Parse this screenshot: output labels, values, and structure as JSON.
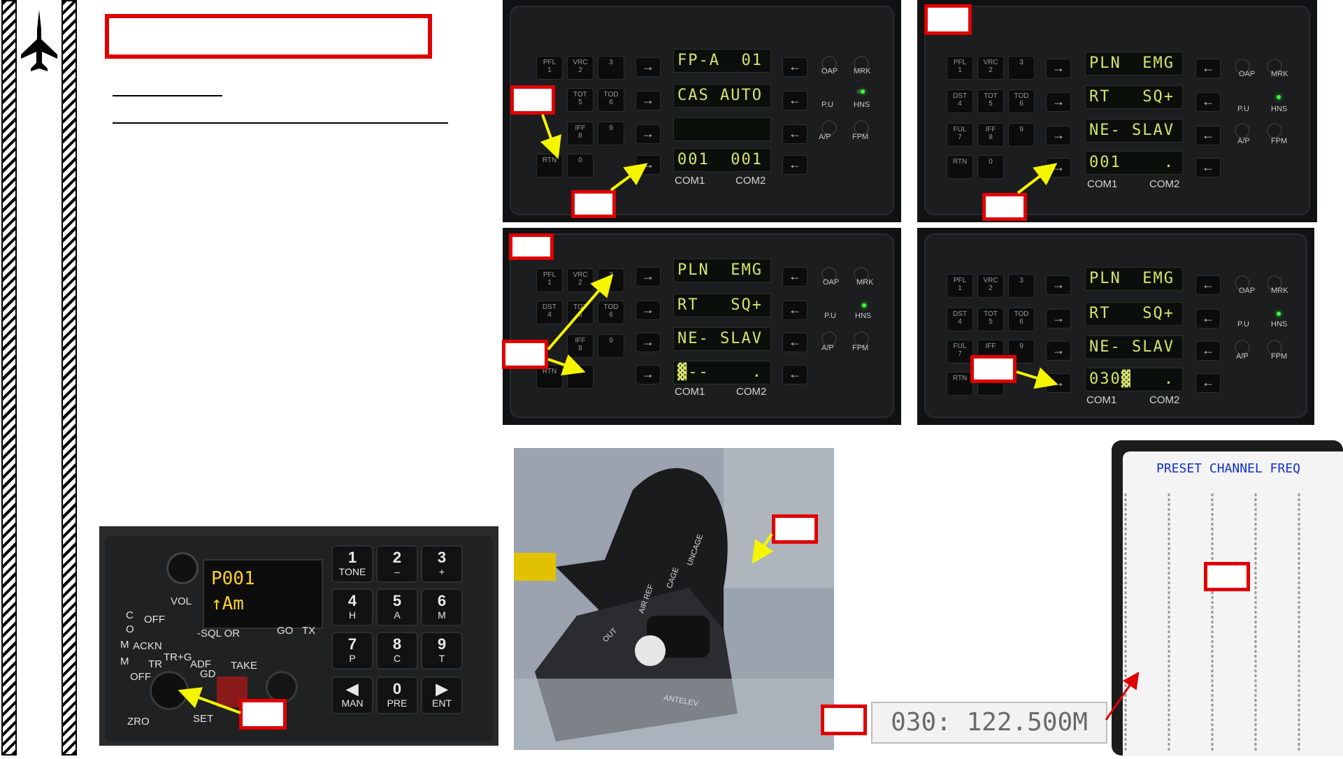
{
  "panels": {
    "p1": {
      "row1_left": [
        "PFL\n1",
        "VRC\n2",
        "3"
      ],
      "row2_left": [
        "TOT\n5",
        "TOD\n6"
      ],
      "row3_left": [
        "IFF\n8",
        "9"
      ],
      "row4_left": [
        "RTN",
        "0"
      ],
      "lcd": [
        "FP-A  01",
        "CAS AUTO",
        "",
        "001  001"
      ],
      "right": [
        "OAP",
        "MRK",
        "P.U",
        "HNS",
        "A/P",
        "FPM"
      ],
      "com1": "COM1",
      "com2": "COM2"
    },
    "p2": {
      "row1_left": [
        "PFL\n1",
        "VRC\n2",
        "3"
      ],
      "row2_left": [
        "DST\n4",
        "TOT\n5",
        "TOD\n6"
      ],
      "row3_left": [
        "FUL\n7",
        "IFF\n8",
        "9"
      ],
      "row4_left": [
        "RTN",
        "0"
      ],
      "lcd": [
        "PLN  EMG",
        "RT   SQ+",
        "NE- SLAV",
        "001    ."
      ],
      "right": [
        "OAP",
        "MRK",
        "P.U",
        "HNS",
        "A/P",
        "FPM"
      ],
      "com1": "COM1",
      "com2": "COM2"
    },
    "p3": {
      "row1_left": [
        "PFL\n1",
        "VRC\n2",
        "3"
      ],
      "row2_left": [
        "DST\n4",
        "TOT\n5",
        "TOD\n6"
      ],
      "row3_left": [
        "IFF\n8",
        "9"
      ],
      "row4_left": [
        "RTN",
        "0"
      ],
      "lcd": [
        "PLN  EMG",
        "RT   SQ+",
        "NE- SLAV",
        "▓--    ."
      ],
      "right": [
        "OAP",
        "MRK",
        "P.U",
        "HNS",
        "A/P",
        "FPM"
      ],
      "com1": "COM1",
      "com2": "COM2"
    },
    "p4": {
      "row1_left": [
        "PFL\n1",
        "VRC\n2",
        "3"
      ],
      "row2_left": [
        "DST\n4",
        "TOT\n5",
        "TOD\n6"
      ],
      "row3_left": [
        "FUL\n7",
        "IFF",
        "9"
      ],
      "row4_left": [
        "RTN",
        "0"
      ],
      "lcd": [
        "PLN  EMG",
        "RT   SQ+",
        "NE- SLAV",
        "030▓   ."
      ],
      "right": [
        "OAP",
        "MRK",
        "P.U",
        "HNS",
        "A/P",
        "FPM"
      ],
      "com1": "COM1",
      "com2": "COM2"
    }
  },
  "radio": {
    "display_line1": "P001",
    "display_line2": "↑Am",
    "vol": "VOL",
    "labels": [
      "C",
      "O",
      "M",
      "M",
      "OFF",
      "-SQL OR",
      "GO",
      "TX",
      "ACKN",
      "TR",
      "TR+G",
      "ADF",
      "GD",
      "TAKE",
      "OFF",
      "ZRO",
      "SET"
    ],
    "keys": [
      {
        "main": "1",
        "sub": "TONE"
      },
      {
        "main": "2",
        "sub": "–"
      },
      {
        "main": "3",
        "sub": "+"
      },
      {
        "main": "4",
        "sub": "H"
      },
      {
        "main": "5",
        "sub": "A"
      },
      {
        "main": "6",
        "sub": "M"
      },
      {
        "main": "7",
        "sub": "P"
      },
      {
        "main": "8",
        "sub": "C"
      },
      {
        "main": "9",
        "sub": "T"
      },
      {
        "main": "◀",
        "sub": "MAN"
      },
      {
        "main": "0",
        "sub": "PRE"
      },
      {
        "main": "▶",
        "sub": "ENT"
      }
    ]
  },
  "throttle": {
    "labels": [
      "AIR REF",
      "CAGE",
      "UNCAGE",
      "OUT",
      "ANTELEV"
    ]
  },
  "preset_card": {
    "title": "PRESET CHANNEL FREQ",
    "highlight": "030: 122.500M"
  },
  "colors": {
    "callout_red": "#e00000",
    "arrow_yellow": "#f5f500",
    "lcd_green": "#d8e36a",
    "radio_amber": "#ffd12a",
    "card_blue": "#1430c8"
  }
}
